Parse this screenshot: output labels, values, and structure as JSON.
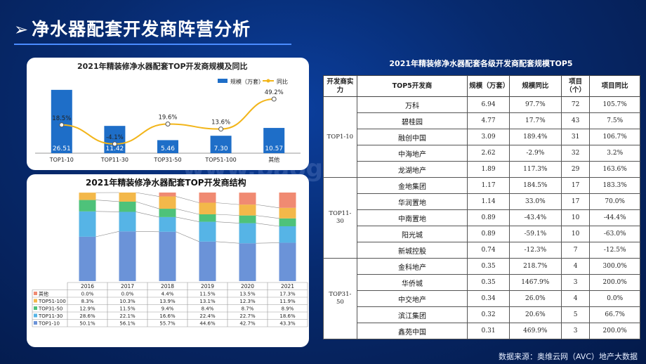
{
  "page": {
    "title": "净水器配套开发商阵营分析",
    "arrow": "➢",
    "watermark": "www.baogao5.com",
    "source": "数据来源：奥维云网（AVC）地产大数据"
  },
  "colors": {
    "bar_blue": "#1e6ec8",
    "line_yellow": "#f2b51a",
    "seg_top1_10": "#6b93d8",
    "seg_top11_30": "#56b4e6",
    "seg_top31_50": "#4ec27a",
    "seg_top51_100": "#f3b84a",
    "seg_other": "#f08a72"
  },
  "chart_data": [
    {
      "type": "bar",
      "title": "2021年精装修净水器配套TOP开发商规模及同比",
      "categories": [
        "TOP1-10",
        "TOP11-30",
        "TOP31-50",
        "TOP51-100",
        "其他"
      ],
      "series": [
        {
          "name": "规模（万套）",
          "kind": "bar",
          "values": [
            26.51,
            11.42,
            5.46,
            7.3,
            10.57
          ]
        },
        {
          "name": "同比",
          "kind": "line",
          "values": [
            18.5,
            -4.1,
            19.6,
            13.6,
            49.2
          ],
          "labels": [
            "18.5%",
            "-4.1%",
            "19.6%",
            "13.6%",
            "49.2%"
          ]
        }
      ],
      "ylim": [
        0,
        30
      ],
      "legend": "top-right"
    },
    {
      "type": "bar",
      "stacked": true,
      "title": "2021年精装修净水器配套TOP开发商结构",
      "categories": [
        "2016",
        "2017",
        "2018",
        "2019",
        "2020",
        "2021"
      ],
      "series": [
        {
          "name": "TOP1-10",
          "values": [
            50.1,
            56.1,
            55.7,
            44.6,
            42.7,
            43.3
          ],
          "labels": [
            "50.1%",
            "56.1%",
            "55.7%",
            "44.6%",
            "42.7%",
            "43.3%"
          ]
        },
        {
          "name": "TOP11-30",
          "values": [
            28.6,
            22.1,
            16.6,
            22.4,
            22.7,
            18.6
          ],
          "labels": [
            "28.6%",
            "22.1%",
            "16.6%",
            "22.4%",
            "22.7%",
            "18.6%"
          ]
        },
        {
          "name": "TOP31-50",
          "values": [
            12.9,
            11.5,
            9.4,
            8.4,
            8.7,
            8.9
          ],
          "labels": [
            "12.9%",
            "11.5%",
            "9.4%",
            "8.4%",
            "8.7%",
            "8.9%"
          ]
        },
        {
          "name": "TOP51-100",
          "values": [
            8.3,
            10.3,
            13.9,
            13.1,
            12.3,
            11.9
          ],
          "labels": [
            "8.3%",
            "10.3%",
            "13.9%",
            "13.1%",
            "12.3%",
            "11.9%"
          ]
        },
        {
          "name": "其他",
          "values": [
            0.0,
            0.0,
            4.4,
            11.5,
            13.5,
            17.3
          ],
          "labels": [
            "0.0%",
            "0.0%",
            "4.4%",
            "11.5%",
            "13.5%",
            "17.3%"
          ]
        }
      ],
      "ylim": [
        0,
        100
      ]
    },
    {
      "type": "table",
      "title": "2021年精装修净水器配套各级开发商配套规模TOP5",
      "headers": [
        "开发商实力",
        "TOP5开发商",
        "规模（万套）",
        "规模同比",
        "项目（个）",
        "项目同比"
      ],
      "groups": [
        {
          "tier": "TOP1-10",
          "rows": [
            [
              "万科",
              "6.94",
              "97.7%",
              "72",
              "105.7%"
            ],
            [
              "碧桂园",
              "4.77",
              "17.7%",
              "43",
              "7.5%"
            ],
            [
              "融创中国",
              "3.09",
              "189.4%",
              "31",
              "106.7%"
            ],
            [
              "中海地产",
              "2.62",
              "-2.9%",
              "32",
              "3.2%"
            ],
            [
              "龙湖地产",
              "1.89",
              "117.3%",
              "29",
              "163.6%"
            ]
          ]
        },
        {
          "tier": "TOP11-30",
          "rows": [
            [
              "金地集团",
              "1.17",
              "184.5%",
              "17",
              "183.3%"
            ],
            [
              "华润置地",
              "1.14",
              "33.0%",
              "17",
              "70.0%"
            ],
            [
              "中南置地",
              "0.89",
              "-43.4%",
              "10",
              "-44.4%"
            ],
            [
              "阳光城",
              "0.89",
              "-59.1%",
              "10",
              "-63.0%"
            ],
            [
              "新城控股",
              "0.74",
              "-12.3%",
              "7",
              "-12.5%"
            ]
          ]
        },
        {
          "tier": "TOP31-50",
          "rows": [
            [
              "金科地产",
              "0.35",
              "218.7%",
              "4",
              "300.0%"
            ],
            [
              "华侨城",
              "0.35",
              "1467.9%",
              "3",
              "200.0%"
            ],
            [
              "中交地产",
              "0.34",
              "26.0%",
              "4",
              "0.0%"
            ],
            [
              "滨江集团",
              "0.32",
              "20.6%",
              "5",
              "66.7%"
            ],
            [
              "鑫苑中国",
              "0.31",
              "469.9%",
              "3",
              "200.0%"
            ]
          ]
        }
      ]
    }
  ]
}
